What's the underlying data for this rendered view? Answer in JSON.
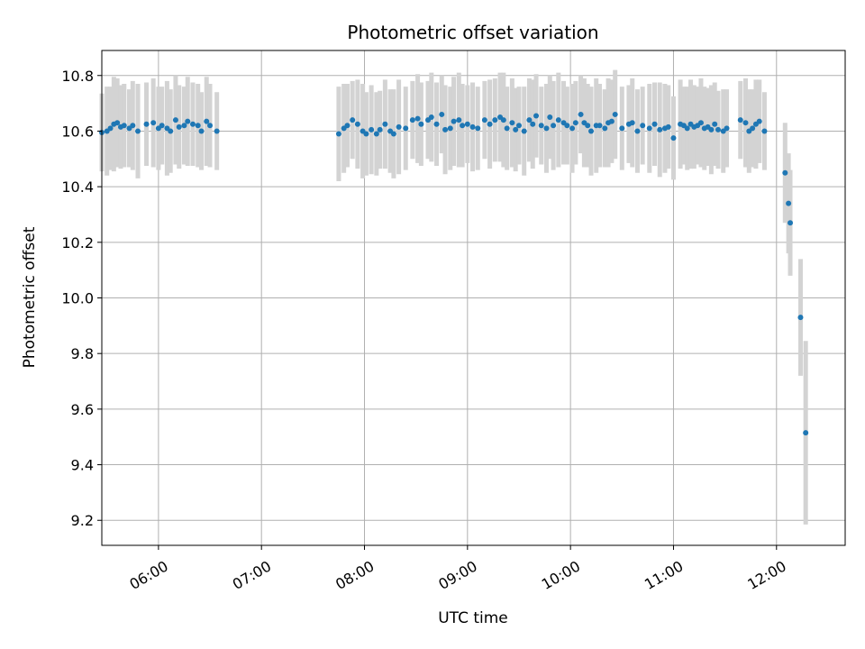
{
  "chart_data": {
    "type": "scatter",
    "title": "Photometric offset variation",
    "xlabel": "UTC time",
    "ylabel": "Photometric offset",
    "x_ticks": [
      "06:00",
      "07:00",
      "08:00",
      "09:00",
      "10:00",
      "11:00",
      "12:00"
    ],
    "y_ticks": [
      "9.2",
      "9.4",
      "9.6",
      "9.8",
      "10.0",
      "10.2",
      "10.4",
      "10.6",
      "10.8"
    ],
    "xlim": [
      "05:27",
      "12:40"
    ],
    "ylim": [
      9.11,
      10.89
    ],
    "grid": true,
    "colors": {
      "marker": "#1f77b4",
      "errorbar": "#d3d3d3",
      "grid": "#b0b0b0"
    },
    "series": [
      {
        "x": [
          "05:27",
          "05:30",
          "05:32",
          "05:34",
          "05:36",
          "05:38",
          "05:40",
          "05:43",
          "05:45",
          "05:48",
          "05:53",
          "05:57",
          "06:00",
          "06:02",
          "06:05",
          "06:07",
          "06:10",
          "06:12",
          "06:15",
          "06:17",
          "06:20",
          "06:23",
          "06:25",
          "06:28",
          "06:30",
          "06:34",
          "07:45",
          "07:48",
          "07:50",
          "07:53",
          "07:56",
          "07:59",
          "08:01",
          "08:04",
          "08:07",
          "08:09",
          "08:12",
          "08:15",
          "08:17",
          "08:20",
          "08:24",
          "08:28",
          "08:31",
          "08:33",
          "08:37",
          "08:39",
          "08:42",
          "08:45",
          "08:47",
          "08:50",
          "08:52",
          "08:55",
          "08:57",
          "09:00",
          "09:03",
          "09:06",
          "09:10",
          "09:13",
          "09:16",
          "09:19",
          "09:21",
          "09:23",
          "09:26",
          "09:28",
          "09:30",
          "09:33",
          "09:36",
          "09:38",
          "09:40",
          "09:43",
          "09:46",
          "09:48",
          "09:50",
          "09:53",
          "09:56",
          "09:58",
          "10:01",
          "10:03",
          "10:06",
          "10:08",
          "10:10",
          "10:12",
          "10:15",
          "10:17",
          "10:20",
          "10:22",
          "10:24",
          "10:26",
          "10:30",
          "10:34",
          "10:36",
          "10:39",
          "10:42",
          "10:46",
          "10:49",
          "10:52",
          "10:55",
          "10:57",
          "11:00",
          "11:04",
          "11:06",
          "11:08",
          "11:10",
          "11:12",
          "11:14",
          "11:16",
          "11:18",
          "11:20",
          "11:22",
          "11:24",
          "11:26",
          "11:29",
          "11:31",
          "11:39",
          "11:42",
          "11:44",
          "11:46",
          "11:48",
          "11:50",
          "11:53",
          "12:05",
          "12:07",
          "12:08",
          "12:14",
          "12:17"
        ],
        "y": [
          10.595,
          10.6,
          10.61,
          10.625,
          10.63,
          10.615,
          10.62,
          10.61,
          10.62,
          10.6,
          10.625,
          10.63,
          10.61,
          10.62,
          10.61,
          10.6,
          10.64,
          10.615,
          10.62,
          10.635,
          10.625,
          10.62,
          10.6,
          10.635,
          10.62,
          10.6,
          10.59,
          10.61,
          10.62,
          10.64,
          10.625,
          10.6,
          10.59,
          10.605,
          10.59,
          10.605,
          10.625,
          10.6,
          10.59,
          10.615,
          10.61,
          10.64,
          10.645,
          10.625,
          10.64,
          10.65,
          10.625,
          10.66,
          10.605,
          10.61,
          10.635,
          10.64,
          10.62,
          10.625,
          10.615,
          10.61,
          10.64,
          10.625,
          10.64,
          10.65,
          10.64,
          10.61,
          10.63,
          10.605,
          10.62,
          10.6,
          10.64,
          10.625,
          10.655,
          10.62,
          10.61,
          10.65,
          10.62,
          10.64,
          10.63,
          10.62,
          10.61,
          10.63,
          10.66,
          10.63,
          10.62,
          10.6,
          10.62,
          10.62,
          10.61,
          10.63,
          10.635,
          10.66,
          10.61,
          10.625,
          10.63,
          10.6,
          10.62,
          10.61,
          10.625,
          10.605,
          10.61,
          10.615,
          10.575,
          10.625,
          10.62,
          10.61,
          10.625,
          10.615,
          10.62,
          10.63,
          10.61,
          10.615,
          10.605,
          10.625,
          10.605,
          10.6,
          10.61,
          10.64,
          10.63,
          10.6,
          10.61,
          10.625,
          10.635,
          10.6,
          10.45,
          10.34,
          10.27,
          9.93,
          9.515
        ],
        "err": [
          0.14,
          0.16,
          0.15,
          0.17,
          0.16,
          0.15,
          0.15,
          0.14,
          0.16,
          0.17,
          0.15,
          0.16,
          0.15,
          0.14,
          0.17,
          0.15,
          0.16,
          0.15,
          0.14,
          0.16,
          0.15,
          0.15,
          0.14,
          0.16,
          0.15,
          0.14,
          0.17,
          0.16,
          0.15,
          0.14,
          0.16,
          0.17,
          0.15,
          0.16,
          0.15,
          0.14,
          0.16,
          0.15,
          0.16,
          0.17,
          0.15,
          0.14,
          0.16,
          0.15,
          0.14,
          0.16,
          0.15,
          0.14,
          0.16,
          0.15,
          0.16,
          0.17,
          0.15,
          0.14,
          0.16,
          0.15,
          0.14,
          0.16,
          0.15,
          0.16,
          0.17,
          0.15,
          0.16,
          0.15,
          0.14,
          0.16,
          0.15,
          0.16,
          0.15,
          0.14,
          0.16,
          0.15,
          0.16,
          0.17,
          0.15,
          0.14,
          0.16,
          0.15,
          0.14,
          0.16,
          0.15,
          0.16,
          0.17,
          0.15,
          0.14,
          0.16,
          0.15,
          0.16,
          0.15,
          0.14,
          0.16,
          0.15,
          0.14,
          0.16,
          0.15,
          0.17,
          0.16,
          0.15,
          0.15,
          0.16,
          0.14,
          0.15,
          0.16,
          0.15,
          0.14,
          0.16,
          0.15,
          0.14,
          0.16,
          0.15,
          0.14,
          0.15,
          0.14,
          0.14,
          0.16,
          0.15,
          0.14,
          0.16,
          0.15,
          0.14,
          0.18,
          0.18,
          0.19,
          0.21,
          0.33
        ]
      }
    ]
  }
}
